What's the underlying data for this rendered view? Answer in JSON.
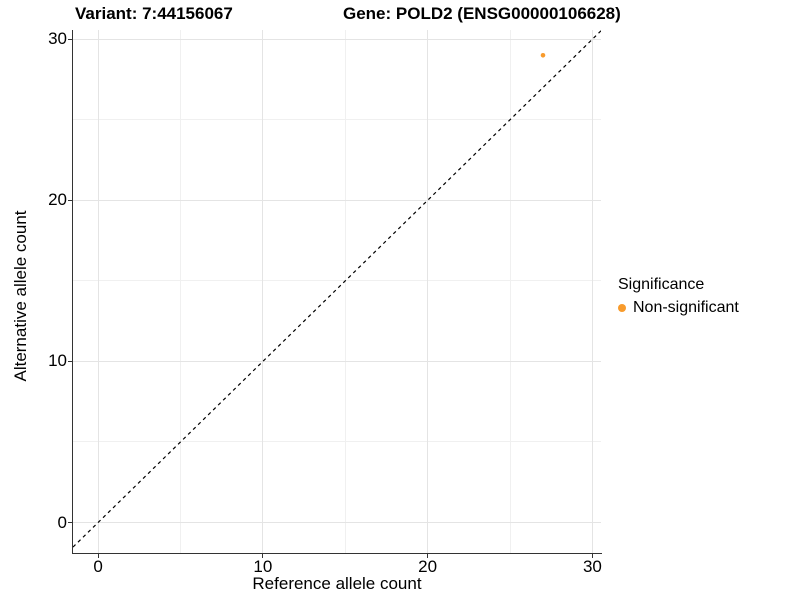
{
  "titles": {
    "variant": "Variant: 7:44156067",
    "gene": "Gene: POLD2 (ENSG00000106628)"
  },
  "chart_data": {
    "type": "scatter",
    "title": "Variant: 7:44156067   Gene: POLD2 (ENSG00000106628)",
    "xlabel": "Reference allele count",
    "ylabel": "Alternative allele count",
    "x_ticks": [
      0,
      10,
      20,
      30
    ],
    "y_ticks": [
      0,
      10,
      20,
      30
    ],
    "x_minor_ticks": [
      5,
      15,
      25
    ],
    "y_minor_ticks": [
      5,
      15,
      25
    ],
    "xlim": [
      -1.52,
      30.52
    ],
    "ylim": [
      -1.89,
      30.57
    ],
    "grid": true,
    "legend_position": "right",
    "series": [
      {
        "name": "Non-significant",
        "color": "#F89B2C",
        "points": [
          {
            "x": 27,
            "y": 29
          }
        ]
      }
    ],
    "reference_line": {
      "type": "identity",
      "slope": 1,
      "intercept": 0,
      "style": "dashed",
      "color": "#000000"
    }
  },
  "legend": {
    "title": "Significance",
    "items": [
      {
        "label": "Non-significant",
        "color": "#F89B2C"
      }
    ]
  },
  "colors": {
    "point": "#F89B2C",
    "axis_line": "#333333",
    "grid_major": "#e4e4e4",
    "grid_minor": "#f0f0f0",
    "text": "#000000",
    "background": "#ffffff"
  }
}
